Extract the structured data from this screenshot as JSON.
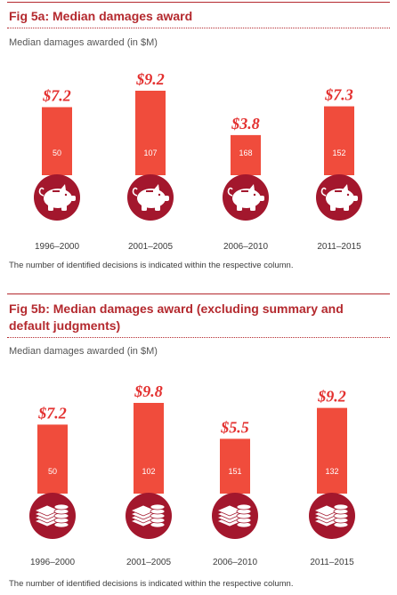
{
  "fig5a": {
    "title": "Fig 5a: Median damages award",
    "subtitle": "Median damages awarded (in $M)",
    "note": "The number of identified decisions is indicated within the respective column."
  },
  "fig5b": {
    "title": "Fig 5b: Median damages award (excluding summary and default judgments)",
    "subtitle": "Median damages awarded (in $M)",
    "note": "The number of identified decisions is indicated within the respective column."
  },
  "chart_data": [
    {
      "type": "bar",
      "categories": [
        "1996–2000",
        "2001–2005",
        "2006–2010",
        "2011–2015"
      ],
      "values": [
        7.2,
        9.2,
        3.8,
        7.3
      ],
      "value_labels": [
        "$7.2",
        "$9.2",
        "$3.8",
        "$7.3"
      ],
      "decision_counts": [
        "50",
        "107",
        "168",
        "152"
      ],
      "title": "Fig 5a: Median damages award",
      "ylabel": "Median damages awarded (in $M)",
      "icon": "piggy-bank-icon",
      "colors": {
        "bar": "#f04c3c",
        "circle": "#a3172d",
        "value": "#e3302f"
      }
    },
    {
      "type": "bar",
      "categories": [
        "1996–2000",
        "2001–2005",
        "2006–2010",
        "2011–2015"
      ],
      "values": [
        7.2,
        9.8,
        5.5,
        9.2
      ],
      "value_labels": [
        "$7.2",
        "$9.8",
        "$5.5",
        "$9.2"
      ],
      "decision_counts": [
        "50",
        "102",
        "151",
        "132"
      ],
      "title": "Fig 5b: Median damages award (excluding summary and default judgments)",
      "ylabel": "Median damages awarded (in $M)",
      "icon": "cash-and-coins-icon",
      "colors": {
        "bar": "#f04c3c",
        "circle": "#a3172d",
        "value": "#e3302f"
      }
    }
  ]
}
